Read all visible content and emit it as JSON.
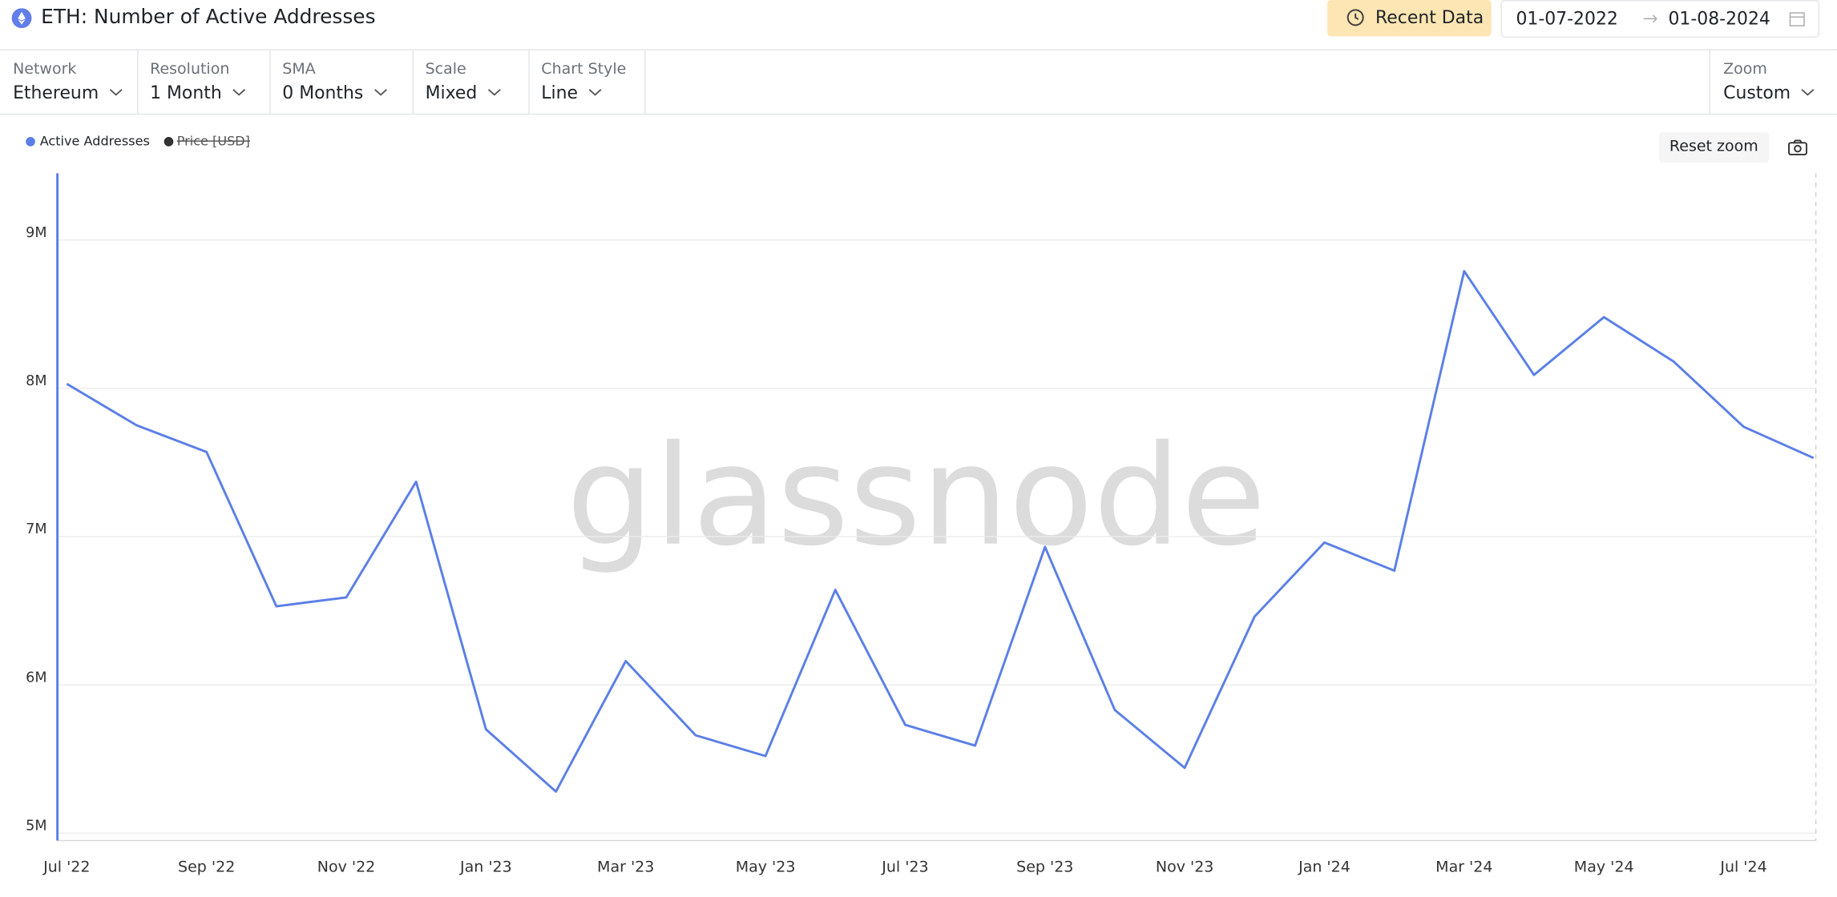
{
  "header": {
    "title": "ETH: Number of Active Addresses",
    "recent_button": "Recent Data",
    "date_from": "01-07-2022",
    "date_to": "01-08-2024"
  },
  "controls": [
    {
      "label": "Network",
      "value": "Ethereum"
    },
    {
      "label": "Resolution",
      "value": "1 Month"
    },
    {
      "label": "SMA",
      "value": "0 Months"
    },
    {
      "label": "Scale",
      "value": "Mixed"
    },
    {
      "label": "Chart Style",
      "value": "Line"
    },
    {
      "label": "Zoom",
      "value": "Custom"
    }
  ],
  "toolbar": {
    "inactive_legend": "Price [USD]",
    "reset_zoom": "Reset zoom"
  },
  "watermark": "glassnode",
  "chart_data": {
    "type": "line",
    "categories": [
      "Jul '22",
      null,
      "Sep '22",
      null,
      "Nov '22",
      null,
      "Jan '23",
      null,
      "Mar '23",
      null,
      "May '23",
      null,
      "Jul '23",
      null,
      "Sep '23",
      null,
      "Nov '23",
      null,
      "Jan '24",
      null,
      "Mar '24",
      null,
      "May '24",
      null,
      "Jul '24",
      null
    ],
    "series": [
      {
        "name": "Active Addresses",
        "color": "#5b7fe6",
        "values": [
          8030000,
          7750000,
          7570000,
          6530000,
          6590000,
          7370000,
          5700000,
          5280000,
          6160000,
          5660000,
          5520000,
          6640000,
          5730000,
          5590000,
          6930000,
          5830000,
          5440000,
          6460000,
          6960000,
          6770000,
          8790000,
          8090000,
          8480000,
          8180000,
          7740000,
          7530000
        ]
      }
    ],
    "ylim": [
      4950000,
      9450000
    ],
    "yticks": [
      {
        "value": 5000000,
        "label": "5M"
      },
      {
        "value": 6000000,
        "label": "6M"
      },
      {
        "value": 7000000,
        "label": "7M"
      },
      {
        "value": 8000000,
        "label": "8M"
      },
      {
        "value": 9000000,
        "label": "9M"
      }
    ],
    "grid": true
  }
}
